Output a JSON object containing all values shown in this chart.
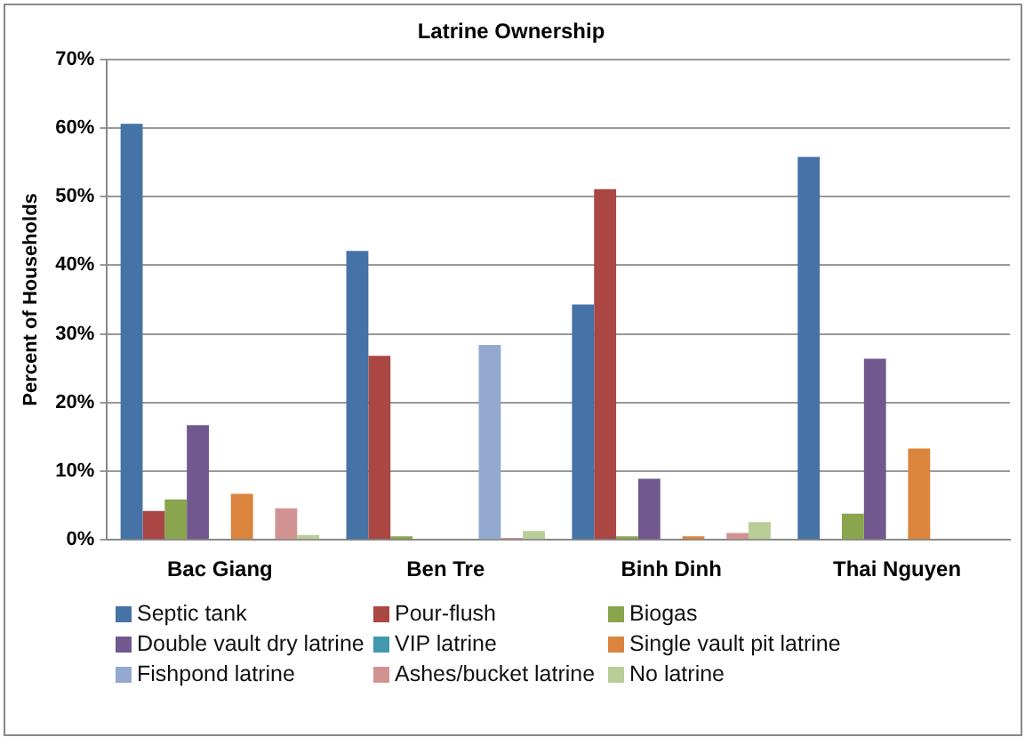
{
  "chart_data": {
    "type": "bar",
    "title": "Latrine Ownership",
    "ylabel": "Percent of Households",
    "categories": [
      "Bac Giang",
      "Ben Tre",
      "Binh Dinh",
      "Thai Nguyen"
    ],
    "series": [
      {
        "name": "Septic tank",
        "color": "#4572a7",
        "values": [
          60.6,
          42.1,
          34.3,
          55.8
        ]
      },
      {
        "name": "Pour-flush",
        "color": "#aa4643",
        "values": [
          4.2,
          26.8,
          51.1,
          0
        ]
      },
      {
        "name": "Biogas",
        "color": "#89a54e",
        "values": [
          5.9,
          0.5,
          0.5,
          3.8
        ]
      },
      {
        "name": "Double vault dry latrine",
        "color": "#71588f",
        "values": [
          16.7,
          0,
          8.9,
          26.4
        ]
      },
      {
        "name": "VIP latrine",
        "color": "#4198af",
        "values": [
          0,
          null,
          0,
          0
        ]
      },
      {
        "name": "Single vault pit latrine",
        "color": "#db843d",
        "values": [
          6.7,
          0,
          0.5,
          13.3
        ]
      },
      {
        "name": "Fishpond latrine",
        "color": "#93a9cf",
        "values": [
          0,
          28.4,
          null,
          0
        ]
      },
      {
        "name": "Ashes/bucket latrine",
        "color": "#d19392",
        "values": [
          4.6,
          0.3,
          1.0,
          0
        ]
      },
      {
        "name": "No latrine",
        "color": "#b9cd96",
        "values": [
          0.7,
          1.3,
          2.6,
          0
        ]
      }
    ],
    "ylim": [
      0,
      70
    ],
    "yticks": [
      {
        "value": 0,
        "label": "0%"
      },
      {
        "value": 10,
        "label": "10%"
      },
      {
        "value": 20,
        "label": "20%"
      },
      {
        "value": 30,
        "label": "30%"
      },
      {
        "value": 40,
        "label": "40%"
      },
      {
        "value": 50,
        "label": "50%"
      },
      {
        "value": 60,
        "label": "60%"
      },
      {
        "value": 70,
        "label": "70%"
      }
    ],
    "grid": "y",
    "legend": "bottom"
  }
}
